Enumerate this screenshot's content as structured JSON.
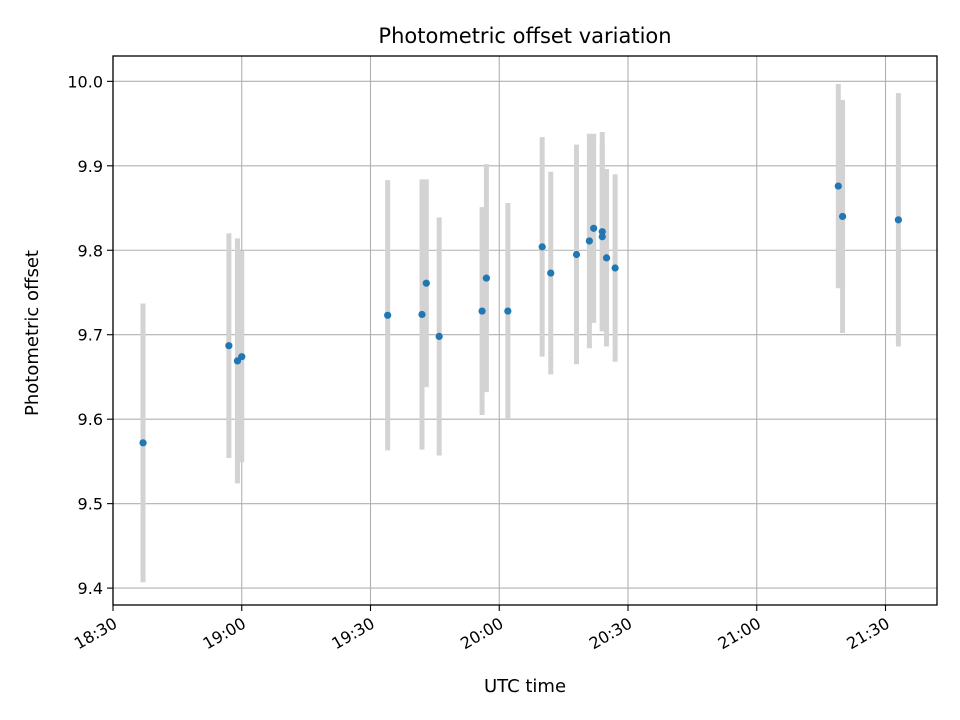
{
  "chart_data": {
    "type": "scatter",
    "title": "Photometric offset variation",
    "xlabel": "UTC time",
    "ylabel": "Photometric offset",
    "x_ticks": [
      "18:30",
      "19:00",
      "19:30",
      "20:00",
      "20:30",
      "21:00",
      "21:30"
    ],
    "y_ticks": [
      "9.4",
      "9.5",
      "9.6",
      "9.7",
      "9.8",
      "9.9",
      "10.0"
    ],
    "xlim": [
      "18:30",
      "21:42"
    ],
    "ylim": [
      9.38,
      10.03
    ],
    "grid": true,
    "legend": "none",
    "colors": {
      "points": "#1f77b4",
      "errorbars": "#d3d3d3",
      "grid": "#b0b0b0"
    },
    "points": [
      {
        "x": "18:37",
        "y": 9.572,
        "err": 0.165
      },
      {
        "x": "18:57",
        "y": 9.687,
        "err": 0.133
      },
      {
        "x": "18:59",
        "y": 9.669,
        "err": 0.145
      },
      {
        "x": "19:00",
        "y": 9.674,
        "err": 0.125
      },
      {
        "x": "19:34",
        "y": 9.723,
        "err": 0.16
      },
      {
        "x": "19:42",
        "y": 9.724,
        "err": 0.16
      },
      {
        "x": "19:43",
        "y": 9.761,
        "err": 0.123
      },
      {
        "x": "19:46",
        "y": 9.698,
        "err": 0.141
      },
      {
        "x": "19:56",
        "y": 9.728,
        "err": 0.123
      },
      {
        "x": "19:57",
        "y": 9.767,
        "err": 0.135
      },
      {
        "x": "20:02",
        "y": 9.728,
        "err": 0.128
      },
      {
        "x": "20:10",
        "y": 9.804,
        "err": 0.13
      },
      {
        "x": "20:12",
        "y": 9.773,
        "err": 0.12
      },
      {
        "x": "20:18",
        "y": 9.795,
        "err": 0.13
      },
      {
        "x": "20:21",
        "y": 9.811,
        "err": 0.127
      },
      {
        "x": "20:22",
        "y": 9.826,
        "err": 0.112
      },
      {
        "x": "20:24",
        "y": 9.822,
        "err": 0.118
      },
      {
        "x": "20:24",
        "y": 9.816,
        "err": 0.11
      },
      {
        "x": "20:25",
        "y": 9.791,
        "err": 0.105
      },
      {
        "x": "20:27",
        "y": 9.779,
        "err": 0.111
      },
      {
        "x": "21:19",
        "y": 9.876,
        "err": 0.121
      },
      {
        "x": "21:20",
        "y": 9.84,
        "err": 0.138
      },
      {
        "x": "21:33",
        "y": 9.836,
        "err": 0.15
      }
    ]
  }
}
